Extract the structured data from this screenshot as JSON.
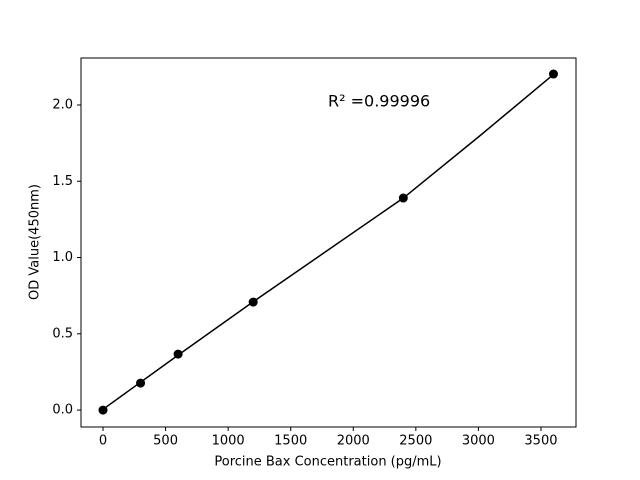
{
  "chart_data": {
    "type": "scatter",
    "xlabel": "Porcine Bax Concentration (pg/mL)",
    "ylabel": "OD Value(450nm)",
    "annotation": "R² =0.99996",
    "x": [
      0,
      300,
      600,
      1200,
      2400,
      3600
    ],
    "values": [
      0.0,
      0.177,
      0.367,
      0.708,
      1.39,
      2.203
    ],
    "color": "#000000",
    "fit": {
      "x": [
        0,
        600,
        1200,
        1800,
        2400,
        3000,
        3600
      ],
      "values": [
        0.005,
        0.36,
        0.71,
        1.05,
        1.39,
        1.79,
        2.2
      ]
    },
    "xlim": [
      -176,
      3780
    ],
    "ylim": [
      -0.111,
      2.308
    ],
    "xticks": [
      0,
      500,
      1000,
      1500,
      2000,
      2500,
      3000,
      3500
    ],
    "yticks": [
      {
        "value": 0,
        "label": "0.0"
      },
      {
        "value": 0.5,
        "label": "0.5"
      },
      {
        "value": 1,
        "label": "1.0"
      },
      {
        "value": 1.5,
        "label": "1.5"
      },
      {
        "value": 2,
        "label": "2.0"
      }
    ],
    "grid": false
  }
}
